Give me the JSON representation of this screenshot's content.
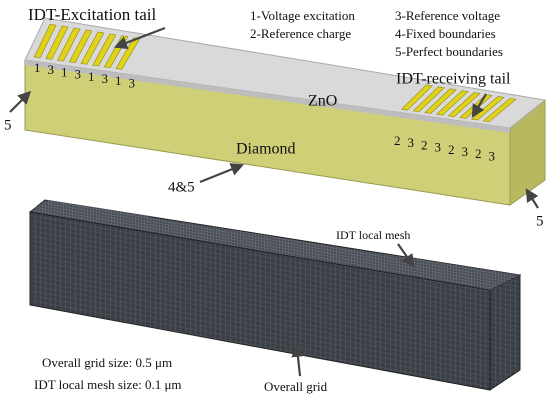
{
  "top_model": {
    "title": "IDT-Excitation tail",
    "legend": [
      "1-Voltage excitation",
      "2-Reference charge",
      "3-Reference voltage",
      "4-Fixed boundaries",
      "5-Perfect boundaries"
    ],
    "layer_top": "ZnO",
    "layer_bottom": "Diamond",
    "receiving_label": "IDT-receiving tail",
    "left_boundary": "5",
    "bottom_boundary": "4&5",
    "right_boundary": "5",
    "excitation_electrodes": [
      "1",
      "3",
      "1",
      "3",
      "1",
      "3",
      "1",
      "3"
    ],
    "receiving_electrodes": [
      "2",
      "3",
      "2",
      "3",
      "2",
      "3",
      "2",
      "3"
    ]
  },
  "mesh_model": {
    "local_mesh_label": "IDT local mesh",
    "overall_size": "Overall grid size: 0.5 μm",
    "local_size": "IDT local mesh size: 0.1 μm",
    "overall_label": "Overall grid"
  }
}
